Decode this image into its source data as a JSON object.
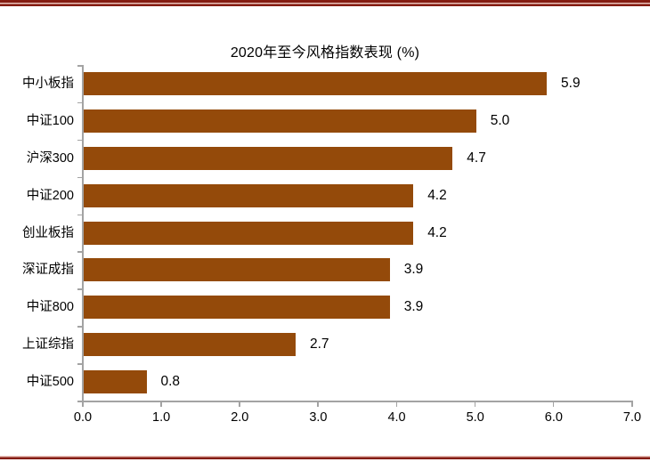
{
  "page": {
    "kind": "report-figure",
    "background": "#ffffff"
  },
  "decorations": {
    "rule_color": "#841C11",
    "rule_gap_color": "#E9C2BA"
  },
  "chart_data": {
    "type": "bar",
    "orientation": "horizontal",
    "title": "2020年至今风格指数表现 (%)",
    "categories": [
      "中小板指",
      "中证100",
      "沪深300",
      "中证200",
      "创业板指",
      "深证成指",
      "中证800",
      "上证综指",
      "中证500"
    ],
    "values": [
      5.9,
      5.0,
      4.7,
      4.2,
      4.2,
      3.9,
      3.9,
      2.7,
      0.8
    ],
    "value_labels": [
      "5.9",
      "5.0",
      "4.7",
      "4.2",
      "4.2",
      "3.9",
      "3.9",
      "2.7",
      "0.8"
    ],
    "xlim": [
      0.0,
      7.0
    ],
    "x_ticks": [
      0.0,
      1.0,
      2.0,
      3.0,
      4.0,
      5.0,
      6.0,
      7.0
    ],
    "x_tick_labels": [
      "0.0",
      "1.0",
      "2.0",
      "3.0",
      "4.0",
      "5.0",
      "6.0",
      "7.0"
    ],
    "grid": false,
    "legend": null,
    "bar_color": "#944A0A",
    "axis_color": "#A3A3A3",
    "text_color": "#000000"
  }
}
